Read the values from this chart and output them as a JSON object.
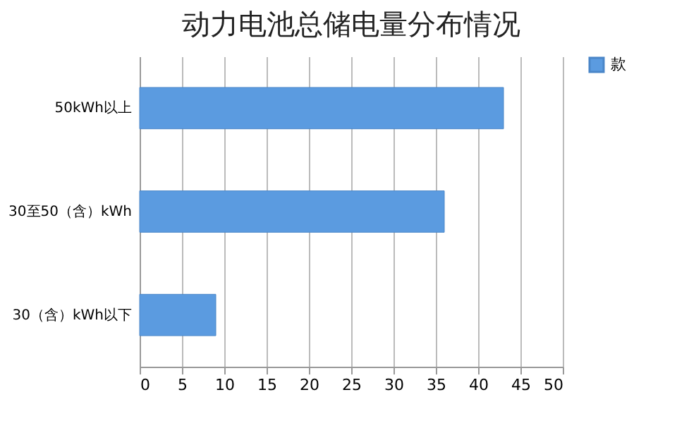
{
  "chart_data": {
    "type": "bar",
    "orientation": "horizontal",
    "title": "动力电池总储电量分布情况",
    "categories": [
      "50kWh以上",
      "30至50（含）kWh",
      "30（含）kWh以下"
    ],
    "series": [
      {
        "name": "款",
        "color": "#5b9be0",
        "values": [
          43,
          36,
          9
        ]
      }
    ],
    "xlim": [
      0,
      50
    ],
    "xticks": [
      0,
      5,
      10,
      15,
      20,
      25,
      30,
      35,
      40,
      45,
      50
    ],
    "grid": "x",
    "legend": "right"
  }
}
